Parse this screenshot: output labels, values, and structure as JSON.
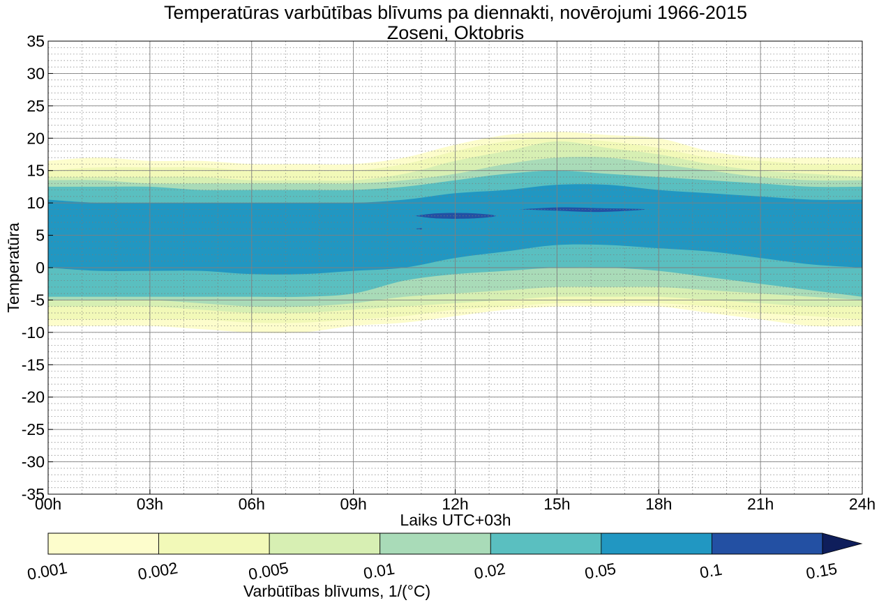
{
  "chart_data": {
    "type": "heatmap",
    "subtype": "filled-contour",
    "title": "Temperatūras varbūtības blīvums pa diennakti, novērojumi 1966-2015",
    "subtitle": "Zoseni, Oktobris",
    "xlabel": "Laiks UTC+03h",
    "ylabel": "Temperatūra",
    "xlim": [
      0,
      24
    ],
    "ylim": [
      -35,
      35
    ],
    "x_ticks": [
      0,
      3,
      6,
      9,
      12,
      15,
      18,
      21,
      24
    ],
    "x_tick_labels": [
      "00h",
      "03h",
      "06h",
      "09h",
      "12h",
      "15h",
      "18h",
      "21h",
      "24h"
    ],
    "y_ticks": [
      -35,
      -30,
      -25,
      -20,
      -15,
      -10,
      -5,
      0,
      5,
      10,
      15,
      20,
      25,
      30,
      35
    ],
    "y_tick_labels": [
      "-35",
      "-30",
      "-25",
      "-20",
      "-15",
      "-10",
      "-5",
      "0",
      "5",
      "10",
      "15",
      "20",
      "25",
      "30",
      "35"
    ],
    "grid": {
      "major": true,
      "minor": true,
      "minor_x_step_hours": 1,
      "minor_y_step": 1
    },
    "colorbar": {
      "label": "Varbūtības blīvums, 1/(°C)",
      "levels": [
        0.001,
        0.002,
        0.005,
        0.01,
        0.02,
        0.05,
        0.1,
        0.15
      ],
      "tick_labels": [
        "0.001",
        "0.002",
        "0.005",
        "0.01",
        "0.02",
        "0.05",
        "0.1",
        "0.15"
      ],
      "colors": [
        "#fdfdcc",
        "#f2f9b8",
        "#d7efb3",
        "#a9dbb8",
        "#5abfc0",
        "#2197c2",
        "#2350a3"
      ],
      "extend_color": "#0f1e5b",
      "extend": "max"
    },
    "contour_bands": [
      {
        "level": 0.001,
        "color": "#fdfdcc",
        "x": [
          0,
          1.5,
          3,
          4.5,
          6,
          7.5,
          9,
          10.5,
          12,
          13.5,
          15,
          16.5,
          18,
          19.5,
          21,
          22.5,
          24
        ],
        "upper": [
          16.5,
          17,
          16.5,
          16.5,
          16,
          16,
          16,
          17,
          19,
          20.5,
          21,
          20.5,
          20,
          18,
          17,
          17,
          17
        ],
        "lower": [
          -9,
          -9,
          -9,
          -9.5,
          -10,
          -10,
          -9,
          -8.5,
          -7.5,
          -6.5,
          -6,
          -6,
          -6,
          -7,
          -8,
          -9,
          -9
        ]
      },
      {
        "level": 0.002,
        "color": "#f2f9b8",
        "x": [
          0,
          1.5,
          3,
          4.5,
          6,
          7.5,
          9,
          10.5,
          12,
          13.5,
          15,
          16.5,
          18,
          19.5,
          21,
          22.5,
          24
        ],
        "upper": [
          15,
          15.5,
          15.5,
          15.5,
          15,
          15,
          15,
          16,
          18,
          19.5,
          20,
          19.5,
          18.5,
          17,
          16.5,
          16,
          16
        ],
        "lower": [
          -8,
          -8,
          -8,
          -8,
          -8.5,
          -8.5,
          -8,
          -7.5,
          -6.5,
          -6,
          -5.5,
          -5.5,
          -5.5,
          -6,
          -7,
          -7.5,
          -8
        ]
      },
      {
        "level": 0.005,
        "color": "#d7efb3",
        "x": [
          0,
          1.5,
          3,
          4.5,
          6,
          7.5,
          9,
          10.5,
          12,
          13.5,
          15,
          16.5,
          18,
          19.5,
          21,
          22.5,
          24
        ],
        "upper": [
          14,
          14,
          14,
          14,
          13.5,
          13.5,
          13.5,
          14.5,
          16.5,
          18,
          19.5,
          18.5,
          17.5,
          16,
          15,
          14.5,
          14
        ],
        "lower": [
          -6,
          -6,
          -6,
          -6.5,
          -7,
          -7,
          -6.5,
          -6,
          -5.5,
          -5,
          -4.5,
          -4.5,
          -4.5,
          -5,
          -5.5,
          -6,
          -6
        ]
      },
      {
        "level": 0.01,
        "color": "#a9dbb8",
        "x": [
          0,
          1.5,
          3,
          4.5,
          6,
          7.5,
          9,
          10.5,
          12,
          13.5,
          15,
          16.5,
          18,
          19.5,
          21,
          22.5,
          24
        ],
        "upper": [
          13.5,
          13.5,
          13,
          13,
          13,
          13,
          13,
          13.5,
          14.5,
          16,
          17,
          17,
          16,
          15,
          14,
          13.5,
          13.5
        ],
        "lower": [
          -5,
          -5,
          -5,
          -5.5,
          -6,
          -6,
          -5.5,
          -4.5,
          -4,
          -3.5,
          -3,
          -3,
          -3,
          -3.5,
          -4,
          -4.5,
          -5
        ]
      },
      {
        "level": 0.02,
        "color": "#5abfc0",
        "x": [
          0,
          1.5,
          3,
          4.5,
          6,
          7.5,
          9,
          10.5,
          12,
          13.5,
          15,
          16.5,
          18,
          19.5,
          21,
          22.5,
          24
        ],
        "upper": [
          12.5,
          12.5,
          12.5,
          12,
          12,
          12,
          12,
          12.5,
          13.5,
          14.5,
          15,
          14.5,
          14,
          13.5,
          13,
          12.5,
          12.5
        ],
        "lower": [
          -4.5,
          -4.5,
          -4.5,
          -4.5,
          -4.5,
          -4.5,
          -4,
          -2,
          -1,
          -0.5,
          0,
          0,
          -0.5,
          -1.5,
          -2.5,
          -3.5,
          -4.5
        ]
      },
      {
        "level": 0.05,
        "color": "#2197c2",
        "x": [
          0,
          1.5,
          3,
          4.5,
          6,
          7.5,
          9,
          10.5,
          12,
          13.5,
          15,
          16.5,
          18,
          19.5,
          21,
          22.5,
          24
        ],
        "upper": [
          10.5,
          10,
          10,
          10,
          10,
          10,
          10,
          10.5,
          11.5,
          12,
          12.8,
          12.8,
          12,
          11.5,
          11,
          10.5,
          10.5
        ],
        "lower": [
          0,
          -0.5,
          -0.5,
          -0.5,
          -1,
          -1,
          -0.5,
          0,
          1.5,
          2.5,
          3.5,
          3.5,
          3,
          2.5,
          1.5,
          0.5,
          0
        ]
      }
    ],
    "contour_islands": [
      {
        "level": 0.1,
        "color": "#2350a3",
        "x": [
          10.8,
          11.5,
          12.5,
          13.2,
          12.5,
          11.5,
          10.8
        ],
        "y": [
          8,
          8.4,
          8.4,
          8,
          7.6,
          7.6,
          8
        ]
      },
      {
        "level": 0.1,
        "color": "#2350a3",
        "x": [
          13.9,
          15,
          16.2,
          17.6,
          16.2,
          15,
          13.9
        ],
        "y": [
          9,
          9.3,
          9.2,
          9,
          8.6,
          8.8,
          9
        ]
      },
      {
        "level": 0.1,
        "color": "#2350a3",
        "x": [
          10.8,
          11,
          11,
          10.8
        ],
        "y": [
          6,
          6.1,
          5.9,
          6
        ]
      }
    ]
  }
}
